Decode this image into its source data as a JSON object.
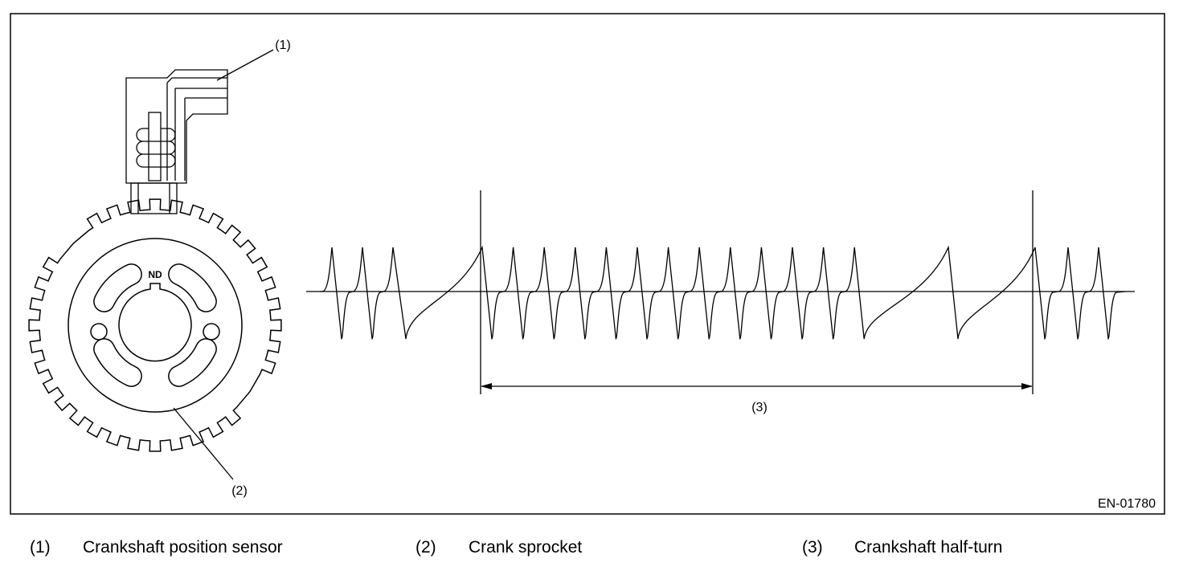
{
  "diagram": {
    "callouts": [
      "(1)",
      "(2)",
      "(3)"
    ],
    "sprocket_mark": "ND",
    "figure_id": "EN-01780"
  },
  "legend": [
    {
      "number": "(1)",
      "label": "Crankshaft position sensor"
    },
    {
      "number": "(2)",
      "label": "Crank sprocket"
    },
    {
      "number": "(3)",
      "label": "Crankshaft half-turn"
    }
  ]
}
